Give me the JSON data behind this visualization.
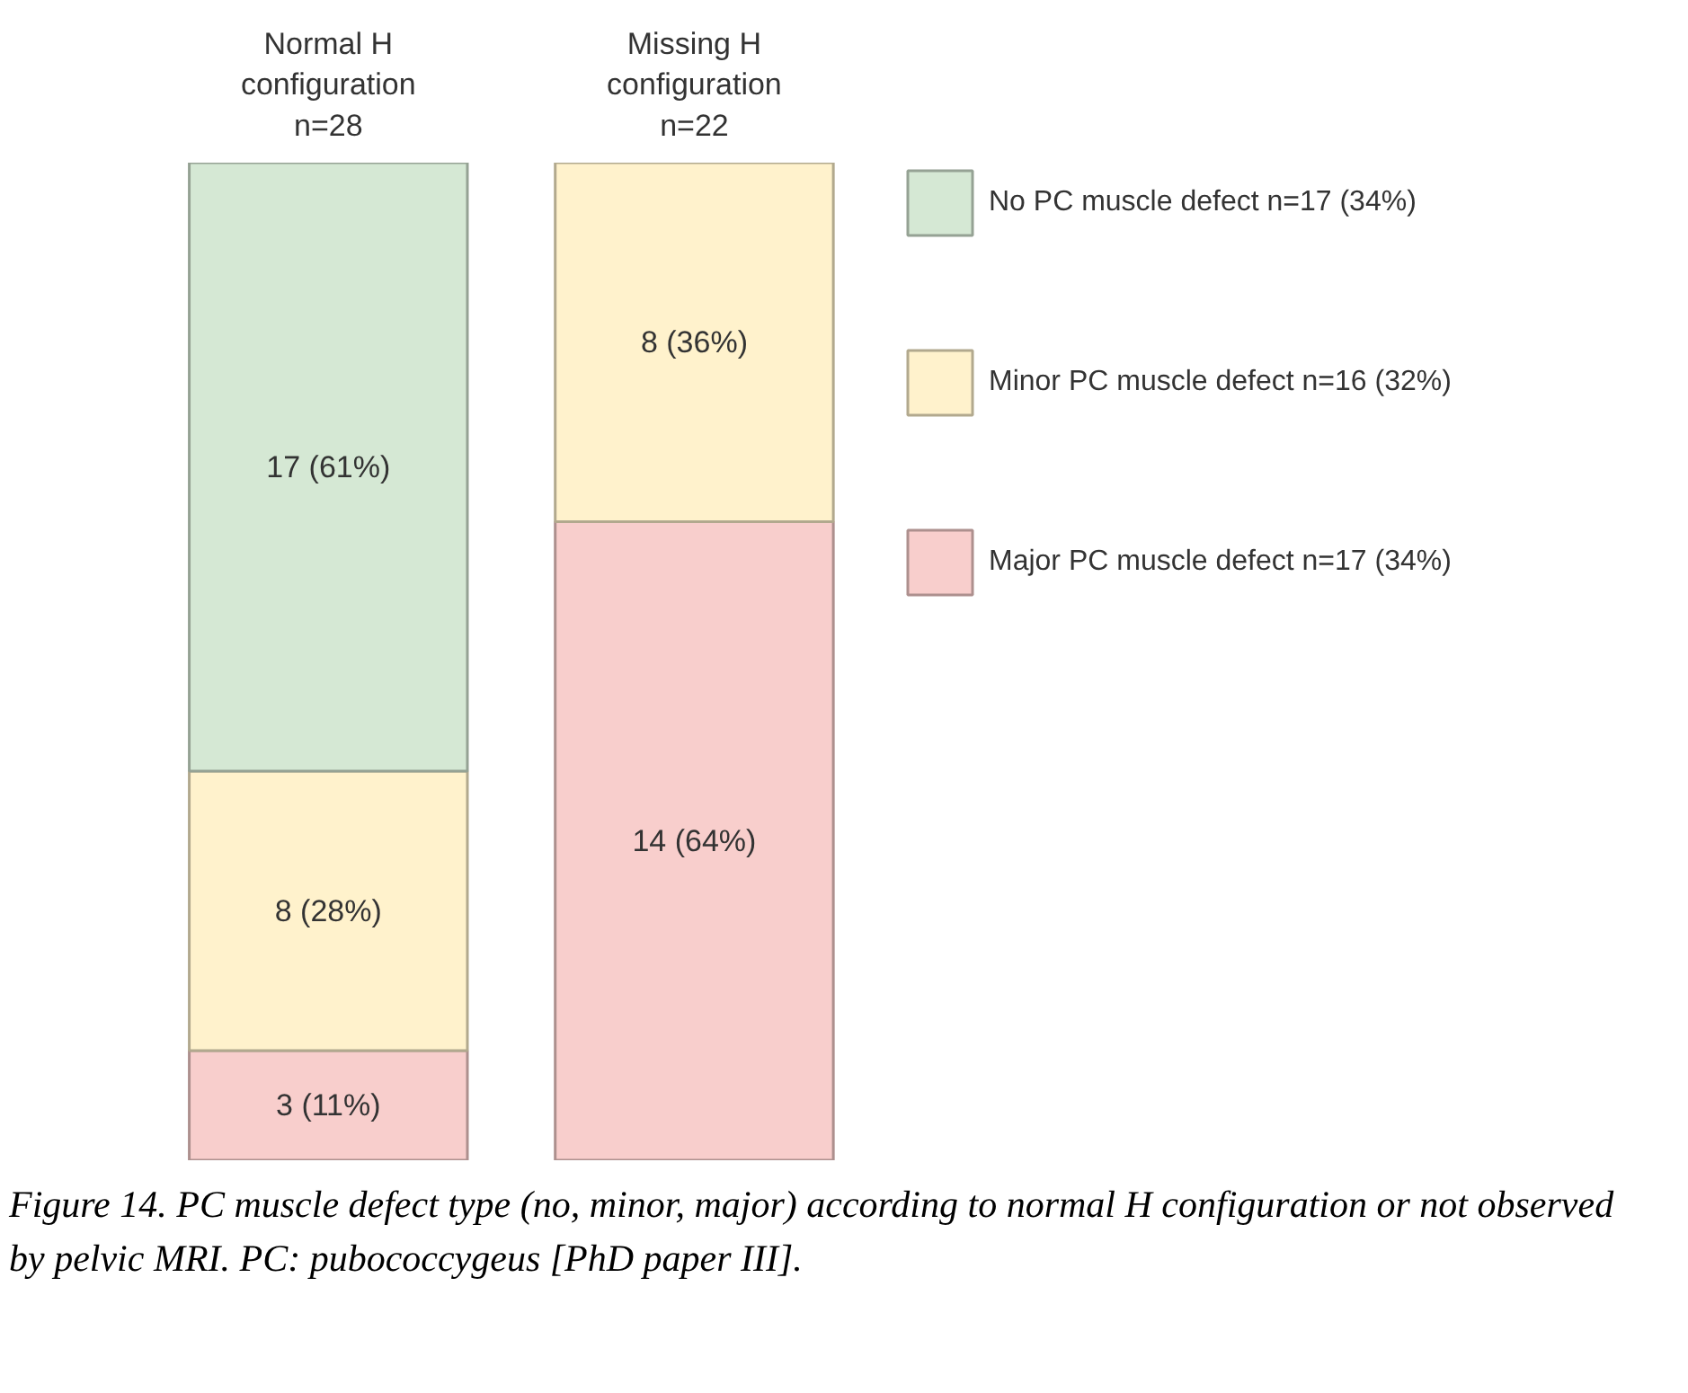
{
  "chart_data": {
    "type": "bar",
    "stacked": true,
    "ylim": [
      0,
      100
    ],
    "legend": "right",
    "grid": false,
    "categories": [
      "Normal H\nconfiguration\nn=28",
      "Missing H\nconfiguration\nn=22"
    ],
    "series": [
      {
        "name": "Major PC muscle defect n=17 (34%)",
        "color": "#f8cecc",
        "values": [
          11,
          64
        ],
        "value_labels": [
          "3 (11%)",
          "14 (64%)"
        ]
      },
      {
        "name": "Minor PC muscle defect n=16 (32%)",
        "color": "#fff2cc",
        "values": [
          28,
          36
        ],
        "value_labels": [
          "8 (28%)",
          "8 (36%)"
        ]
      },
      {
        "name": "No PC muscle defect n=17 (34%)",
        "color": "#d5e8d4",
        "values": [
          61,
          null
        ],
        "value_labels": [
          "17 (61%)",
          null
        ]
      }
    ],
    "annotations": [
      "Figure 14. PC muscle defect type (no, minor, major) according to normal H configuration or not observed by pelvic MRI. PC: pubococcygeus [PhD paper III]."
    ]
  }
}
